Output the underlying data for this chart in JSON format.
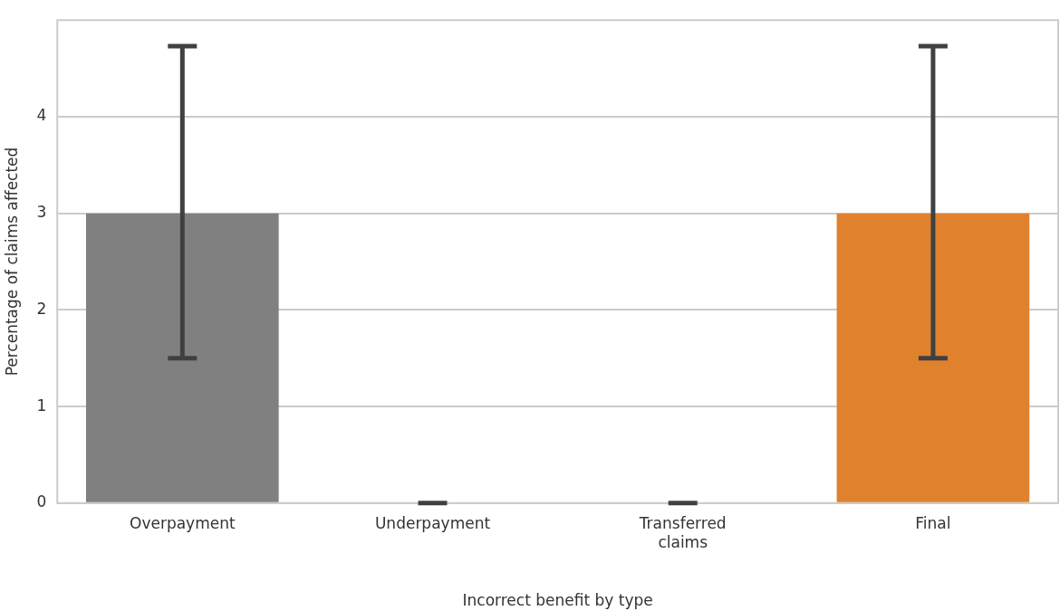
{
  "chart_data": {
    "type": "bar",
    "xlabel": "Incorrect benefit by type",
    "ylabel": "Percentage of claims affected",
    "categories": [
      "Overpayment",
      "Underpayment",
      "Transferred claims",
      "Final"
    ],
    "values": [
      3.0,
      0,
      0,
      3.0
    ],
    "colors": [
      "#808080",
      "#404040",
      "#404040",
      "#e0812d"
    ],
    "errors": [
      [
        1.5,
        4.73
      ],
      [
        0,
        0
      ],
      [
        0,
        0
      ],
      [
        1.5,
        4.73
      ]
    ],
    "ylim": [
      0,
      5
    ],
    "yticks": [
      0,
      1,
      2,
      3,
      4
    ],
    "grid": "y",
    "legend": false
  }
}
